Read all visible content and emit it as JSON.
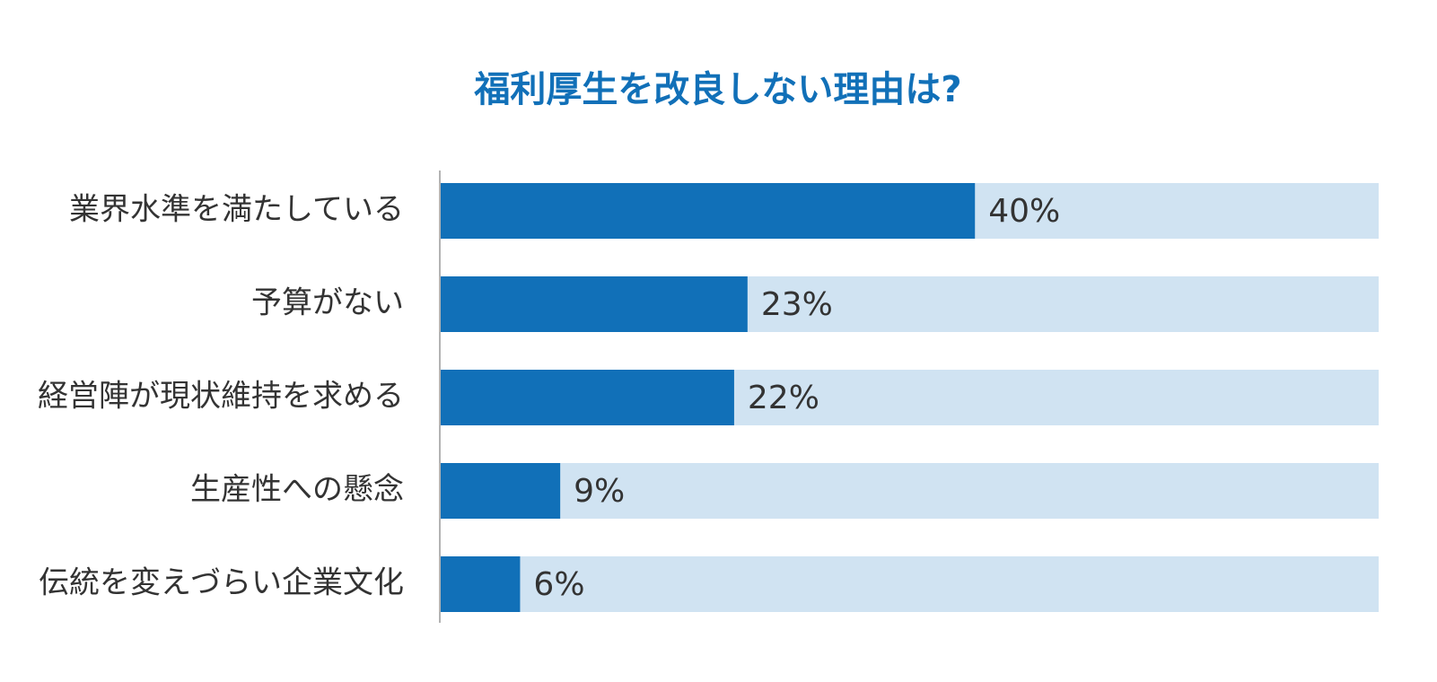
{
  "colors": {
    "bar": "#1170b8",
    "track": "#d0e3f2",
    "title": "#1170b8",
    "text": "#333333",
    "axis": "#b3b3b3"
  },
  "chart_data": {
    "type": "bar",
    "orientation": "horizontal",
    "title": "福利厚生を改良しない理由は?",
    "xlabel": "",
    "ylabel": "",
    "xlim": [
      0,
      100
    ],
    "grid": false,
    "legend": "none",
    "value_suffix": "%",
    "categories": [
      "業界水準を満たしている",
      "予算がない",
      "経営陣が現状維持を求める",
      "生産性への懸念",
      "伝統を変えづらい企業文化"
    ],
    "values": [
      40,
      23,
      22,
      9,
      6
    ],
    "data_labels": [
      "40%",
      "23%",
      "22%",
      "9%",
      "6%"
    ]
  }
}
